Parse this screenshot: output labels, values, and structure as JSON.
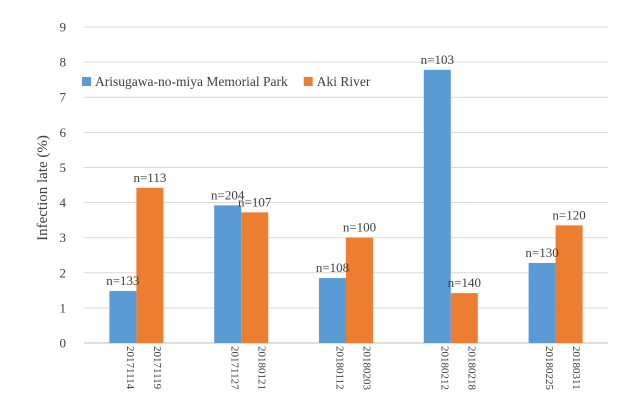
{
  "chart_data": {
    "type": "bar",
    "ylabel": "Infection late (%)",
    "xlabel": "",
    "ylim": [
      0,
      9
    ],
    "yticks": [
      0,
      1,
      2,
      3,
      4,
      5,
      6,
      7,
      8,
      9
    ],
    "grid": true,
    "legend_position": "top-right",
    "series": [
      {
        "name": "Arisugawa-no-miya Memorial Park",
        "color": "#5B9BD5",
        "dates": [
          "20171114",
          "20171127",
          "20180112",
          "20180212",
          "20180225"
        ],
        "values": [
          1.48,
          3.92,
          1.85,
          7.78,
          2.28
        ],
        "labels": [
          "n=133",
          "n=204",
          "n=108",
          "n=103",
          "n=130"
        ]
      },
      {
        "name": "Aki River",
        "color": "#ED7D31",
        "dates": [
          "20171119",
          "20180121",
          "20180203",
          "20180218",
          "20180311"
        ],
        "values": [
          4.42,
          3.72,
          3.0,
          1.42,
          3.35
        ],
        "labels": [
          "n=113",
          "n=107",
          "n=100",
          "n=140",
          "n=120"
        ]
      }
    ]
  }
}
